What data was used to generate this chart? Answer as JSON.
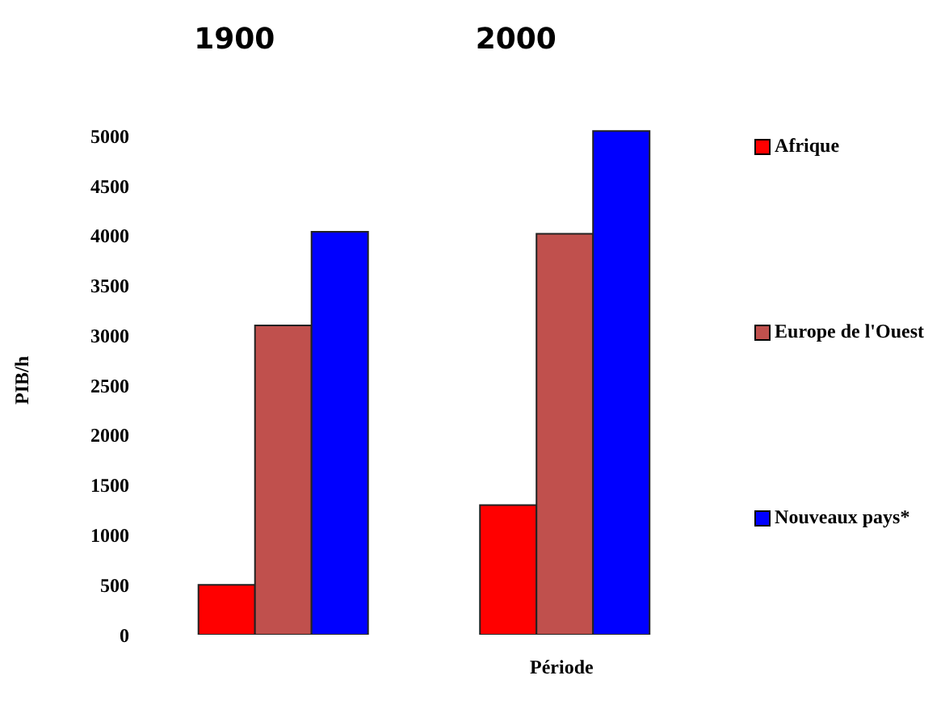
{
  "chart_data": {
    "type": "bar",
    "xlabel": "Période",
    "ylabel": "PIB/h",
    "categories": [
      "1900",
      "2000"
    ],
    "series": [
      {
        "name": "Afrique",
        "color": "#ff0000",
        "values": [
          500,
          1300
        ]
      },
      {
        "name": "Europe de l'Ouest",
        "color": "#c0504d",
        "values": [
          3100,
          4020
        ]
      },
      {
        "name": "Nouveaux pays*",
        "color": "#0000ff",
        "values": [
          4040,
          5050
        ]
      }
    ],
    "ylim": [
      0,
      5100
    ],
    "yticks": [
      0,
      500,
      1000,
      1500,
      2000,
      2500,
      3000,
      3500,
      4000,
      4500,
      5000
    ],
    "grid": false,
    "legend": "right"
  }
}
